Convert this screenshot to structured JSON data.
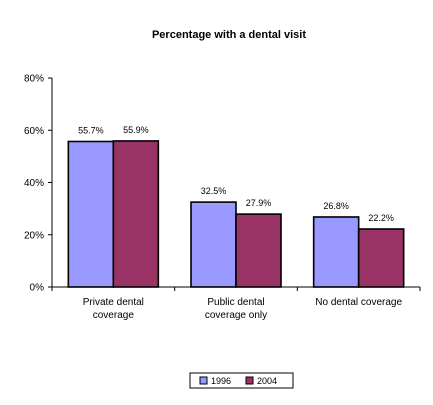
{
  "chart_data": {
    "type": "bar",
    "title": "Percentage with a dental visit",
    "xlabel": "",
    "ylabel": "",
    "categories": [
      [
        "Private dental",
        "coverage"
      ],
      [
        "Public dental",
        "coverage only"
      ],
      [
        "No dental coverage"
      ]
    ],
    "series": [
      {
        "name": "1996",
        "values": [
          55.7,
          32.5,
          26.8
        ],
        "labels": [
          "55.7%",
          "32.5%",
          "26.8%"
        ],
        "color": "#9999FF"
      },
      {
        "name": "2004",
        "values": [
          55.9,
          27.9,
          22.2
        ],
        "labels": [
          "55.9%",
          "27.9%",
          "22.2%"
        ],
        "color": "#993366"
      }
    ],
    "ylim": [
      0,
      80
    ],
    "yticks": [
      0,
      20,
      40,
      60,
      80
    ],
    "ytick_labels": [
      "0%",
      "20%",
      "40%",
      "60%",
      "80%"
    ],
    "grid": false,
    "legend_position": "bottom-center"
  }
}
